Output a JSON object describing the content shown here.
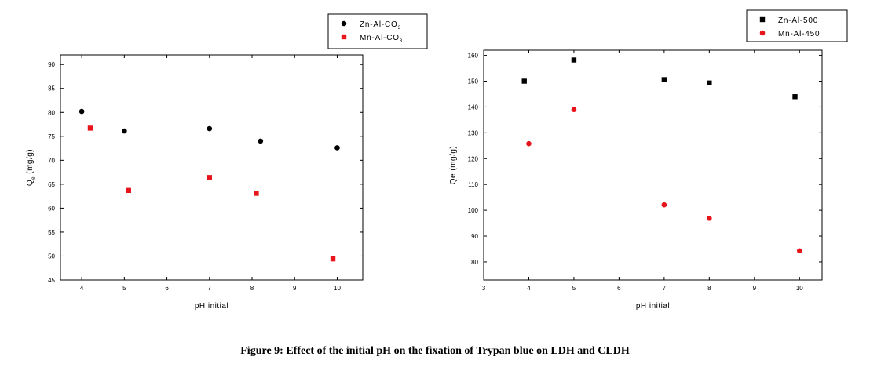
{
  "caption": "Figure 9: Effect of the initial pH on the fixation of Trypan blue on LDH and CLDH",
  "colors": {
    "black_series": "#000000",
    "red_series": "#e8141b"
  },
  "chart_data": [
    {
      "type": "scatter",
      "xlabel": "pH initial",
      "ylabel": {
        "main": "Q",
        "sub": "e",
        "rest": " (mg/g)"
      },
      "xlim": [
        3.5,
        10.6
      ],
      "ylim": [
        45,
        92
      ],
      "xticks": [
        4,
        5,
        6,
        7,
        8,
        9,
        10
      ],
      "yticks": [
        45,
        50,
        55,
        60,
        65,
        70,
        75,
        80,
        85,
        90
      ],
      "legend_position": "top-right outside",
      "series": [
        {
          "name": {
            "main": "Zn-Al-CO",
            "sub": "3"
          },
          "marker": "circle",
          "color": "#000000",
          "x": [
            4.0,
            5.0,
            7.0,
            8.2,
            10.0
          ],
          "y": [
            80.2,
            76.1,
            76.6,
            74.0,
            72.6
          ]
        },
        {
          "name": {
            "main": "Mn-Al-CO",
            "sub": "3"
          },
          "marker": "square",
          "color": "#e8141b",
          "x": [
            4.2,
            5.1,
            7.0,
            8.1,
            9.9
          ],
          "y": [
            76.7,
            63.7,
            66.4,
            63.1,
            49.4
          ]
        }
      ]
    },
    {
      "type": "scatter",
      "xlabel": "pH initial",
      "ylabel": {
        "main": "Qe (mg/g)",
        "sub": "",
        "rest": ""
      },
      "xlim": [
        3,
        10.5
      ],
      "ylim": [
        73,
        162
      ],
      "xticks": [
        3,
        4,
        5,
        6,
        7,
        8,
        9,
        10
      ],
      "yticks": [
        80,
        90,
        100,
        110,
        120,
        130,
        140,
        150,
        160
      ],
      "legend_position": "top-right outside",
      "series": [
        {
          "name": {
            "main": "Zn-Al-500",
            "sub": ""
          },
          "marker": "square",
          "color": "#000000",
          "x": [
            3.9,
            5.0,
            7.0,
            8.0,
            9.9
          ],
          "y": [
            150.0,
            158.2,
            150.6,
            149.3,
            144.0
          ]
        },
        {
          "name": {
            "main": "Mn-Al-450",
            "sub": ""
          },
          "marker": "circle",
          "color": "#e8141b",
          "x": [
            4.0,
            5.0,
            7.0,
            8.0,
            10.0
          ],
          "y": [
            125.8,
            139.0,
            102.1,
            96.9,
            84.3
          ]
        }
      ]
    }
  ]
}
